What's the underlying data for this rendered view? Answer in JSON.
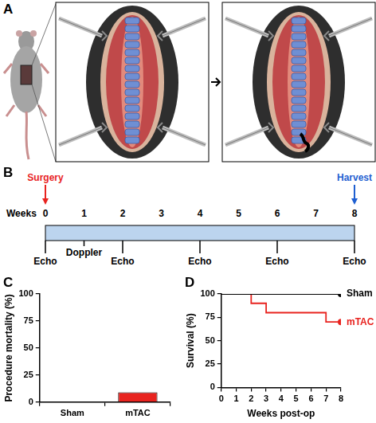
{
  "panel_labels": [
    "A",
    "B",
    "C",
    "D"
  ],
  "timeline": {
    "axis_label": "Weeks",
    "weeks": [
      0,
      1,
      2,
      3,
      4,
      5,
      6,
      7,
      8
    ],
    "start_event": {
      "label": "Surgery",
      "week": 0,
      "color": "#e8231f"
    },
    "end_event": {
      "label": "Harvest",
      "week": 8,
      "color": "#1f5fd1"
    },
    "echo": {
      "label": "Echo",
      "weeks": [
        0,
        2,
        4,
        6,
        8
      ]
    },
    "doppler": {
      "label": "Doppler",
      "week": 1
    },
    "color": "#bcd4ee"
  },
  "chart_data": [
    {
      "type": "bar",
      "y_label": "Procedure mortality (%)",
      "categories": [
        "Sham",
        "mTAC"
      ],
      "values": [
        0,
        9
      ],
      "colors": [
        "#000000",
        "#e8231f"
      ],
      "ylim": [
        0,
        100
      ],
      "yticks": [
        0,
        25,
        50,
        75,
        100
      ],
      "grid": false
    },
    {
      "type": "line",
      "y_label": "Survival (%)",
      "x_label": "Weeks post-op",
      "x": [
        0,
        2,
        3,
        7,
        8
      ],
      "series": [
        {
          "name": "Sham",
          "color": "#000000",
          "values": [
            100,
            100,
            100,
            100,
            100
          ],
          "marker": "circle"
        },
        {
          "name": "mTAC",
          "color": "#e8231f",
          "values": [
            100,
            90,
            80,
            70,
            70
          ],
          "marker": "circle"
        }
      ],
      "line_style": "step",
      "xlim": [
        0,
        8
      ],
      "xticks": [
        0,
        1,
        2,
        3,
        4,
        5,
        6,
        7,
        8
      ],
      "ylim": [
        0,
        100
      ],
      "yticks": [
        0,
        25,
        50,
        75,
        100
      ],
      "grid": false
    }
  ]
}
